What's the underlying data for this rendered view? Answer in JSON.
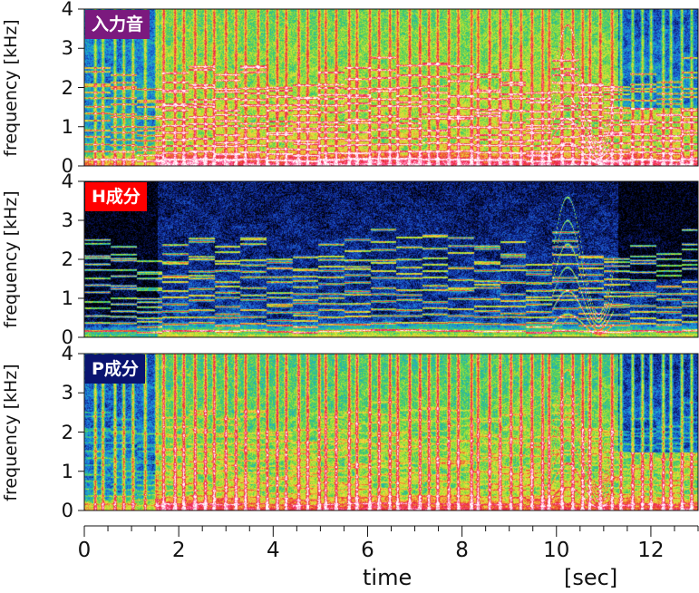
{
  "chart_data": [
    {
      "type": "heatmap",
      "title": "入力音",
      "title_bg": "#7b1a7e",
      "ylabel": "frequency [kHz]",
      "y_ticks": [
        "0",
        "1",
        "2",
        "3",
        "4"
      ],
      "ylim": [
        0,
        4
      ],
      "xlim": [
        0,
        13
      ],
      "component": "input",
      "colormap": [
        "#000000",
        "#0a1a7a",
        "#1e5ad2",
        "#1aa8d8",
        "#38c870",
        "#a8e030",
        "#f0e040",
        "#f07a30",
        "#e8203c",
        "#ff60a0",
        "#ffffff"
      ]
    },
    {
      "type": "heatmap",
      "title": "H成分",
      "title_bg": "#ff0000",
      "ylabel": "frequency [kHz]",
      "y_ticks": [
        "0",
        "1",
        "2",
        "3",
        "4"
      ],
      "ylim": [
        0,
        4
      ],
      "xlim": [
        0,
        13
      ],
      "component": "harmonic",
      "colormap": [
        "#000000",
        "#0a1a7a",
        "#1e5ad2",
        "#1aa8d8",
        "#38c870",
        "#a8e030",
        "#f0e040",
        "#f07a30",
        "#e8203c",
        "#ff60a0",
        "#ffffff"
      ]
    },
    {
      "type": "heatmap",
      "title": "P成分",
      "title_bg": "#0a1470",
      "ylabel": "frequency [kHz]",
      "y_ticks": [
        "0",
        "1",
        "2",
        "3",
        "4"
      ],
      "ylim": [
        0,
        4
      ],
      "xlim": [
        0,
        13
      ],
      "component": "percussive",
      "colormap": [
        "#000000",
        "#0a1a7a",
        "#1e5ad2",
        "#1aa8d8",
        "#38c870",
        "#a8e030",
        "#f0e040",
        "#f07a30",
        "#e8203c",
        "#ff60a0",
        "#ffffff"
      ]
    }
  ],
  "x_axis": {
    "ticks": [
      "0",
      "2",
      "4",
      "6",
      "8",
      "10",
      "12"
    ],
    "tick_values": [
      0,
      2,
      4,
      6,
      8,
      10,
      12
    ],
    "label_time": "time",
    "label_unit": "[sec]"
  }
}
